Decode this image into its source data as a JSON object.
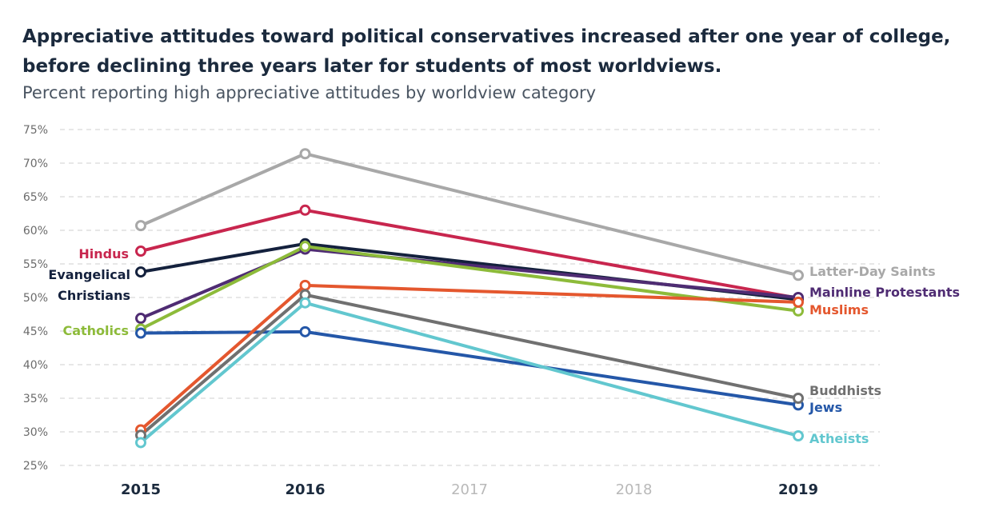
{
  "chart_data": {
    "type": "line",
    "title": "Appreciative attitudes toward political conservatives increased after one year of college, before declining three years later for students of most worldviews.",
    "subtitle": "Percent reporting high appreciative attitudes by worldview category",
    "xlabel": "",
    "ylabel": "",
    "x": [
      2015,
      2016,
      2019
    ],
    "x_ticks": [
      "2015",
      "2016",
      "2017",
      "2018",
      "2019"
    ],
    "ylim": [
      25,
      75
    ],
    "y_ticks": [
      "25%",
      "30%",
      "35%",
      "40%",
      "45%",
      "50%",
      "55%",
      "60%",
      "65%",
      "70%",
      "75%"
    ],
    "grid": true,
    "series": [
      {
        "name": "Latter-Day Saints",
        "color": "#a8a8a8",
        "values": [
          60.7,
          71.4,
          53.3
        ]
      },
      {
        "name": "Hindus",
        "color": "#c8264e",
        "values": [
          56.9,
          63.0,
          49.9
        ]
      },
      {
        "name": "Evangelical Christians",
        "label_lines": [
          "Evangelical",
          "Christians"
        ],
        "color": "#14213d",
        "values": [
          53.8,
          58.0,
          49.7
        ]
      },
      {
        "name": "Mainline Protestants",
        "color": "#4f2c73",
        "values": [
          46.9,
          57.2,
          50.0
        ]
      },
      {
        "name": "Catholics",
        "color": "#8dbb3a",
        "values": [
          45.3,
          57.6,
          48.0
        ]
      },
      {
        "name": "Jews",
        "color": "#2457a8",
        "values": [
          44.7,
          44.9,
          34.0
        ]
      },
      {
        "name": "Muslims",
        "color": "#e4572e",
        "values": [
          30.3,
          51.8,
          49.3
        ]
      },
      {
        "name": "Buddhists",
        "color": "#707070",
        "values": [
          29.5,
          50.4,
          35.0
        ]
      },
      {
        "name": "Atheists",
        "color": "#62c7cf",
        "values": [
          28.4,
          49.2,
          29.4
        ]
      }
    ]
  }
}
